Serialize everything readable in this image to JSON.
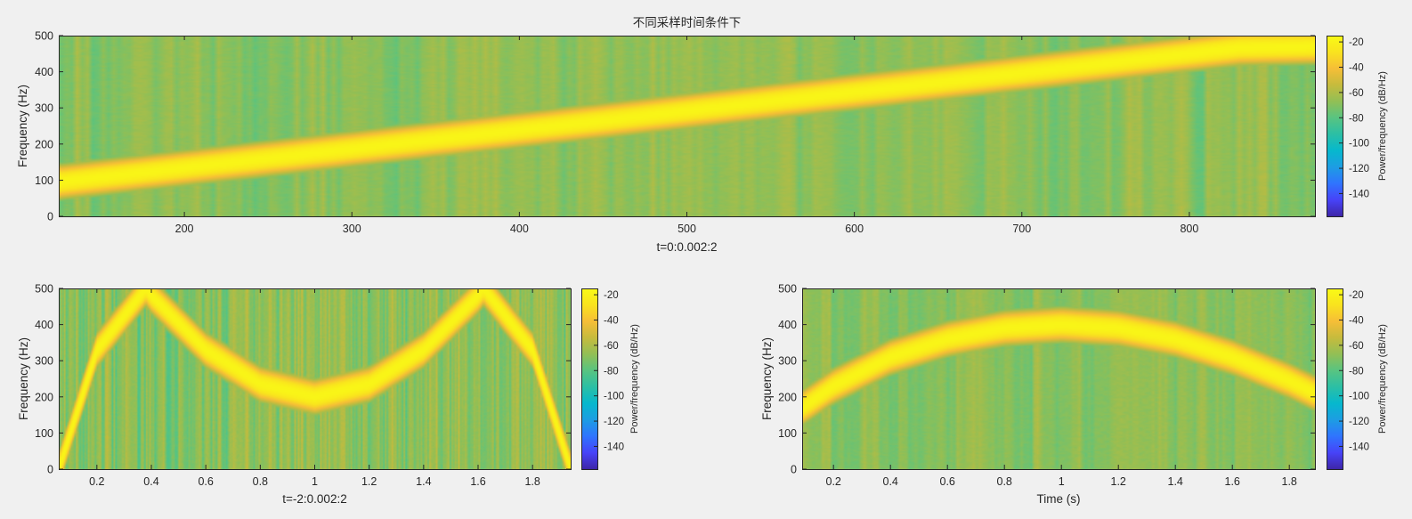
{
  "figure": {
    "background": "#f0f0f0",
    "colormap": "parula",
    "colormap_stops": [
      "#3e26a8",
      "#4743f8",
      "#2f74fe",
      "#1d9de3",
      "#06b8cd",
      "#2bbfa5",
      "#58c481",
      "#92bf55",
      "#c6bb3d",
      "#f6be37",
      "#f9e31e",
      "#f9fb15"
    ]
  },
  "chart_data": [
    {
      "type": "heatmap",
      "id": "top",
      "title": "不同采样时间条件下",
      "xlabel": "t=0:0.002:2",
      "ylabel": "Frequency (Hz)",
      "xlim": [
        125,
        875
      ],
      "ylim": [
        0,
        500
      ],
      "xticks": [
        200,
        300,
        400,
        500,
        600,
        700,
        800
      ],
      "xtick_labels": [
        "200",
        "300",
        "400",
        "500",
        "600",
        "700",
        "800"
      ],
      "yticks": [
        0,
        100,
        200,
        300,
        400,
        500
      ],
      "ytick_labels": [
        "0",
        "100",
        "200",
        "300",
        "400",
        "500"
      ],
      "ridge": {
        "shape": "linear-chirp",
        "points": [
          [
            125,
            95
          ],
          [
            175,
            121
          ],
          [
            250,
            160
          ],
          [
            350,
            213
          ],
          [
            450,
            265
          ],
          [
            550,
            318
          ],
          [
            650,
            370
          ],
          [
            750,
            423
          ],
          [
            830,
            466
          ],
          [
            875,
            470
          ]
        ],
        "peak_db": -20
      },
      "background_db": -70,
      "colorbar": {
        "label": "Power/frequency (dB/Hz)",
        "limits": [
          -158,
          -15
        ],
        "ticks": [
          -20,
          -40,
          -60,
          -80,
          -100,
          -120,
          -140
        ],
        "tick_labels": [
          "-20",
          "-40",
          "-60",
          "-80",
          "-100",
          "-120",
          "-140"
        ]
      }
    },
    {
      "type": "heatmap",
      "id": "bottom-left",
      "title": "",
      "xlabel": "t=-2:0.002:2",
      "ylabel": "Frequency (Hz)",
      "xlim": [
        0.06,
        1.94
      ],
      "ylim": [
        0,
        500
      ],
      "xticks": [
        0.2,
        0.4,
        0.6,
        0.8,
        1,
        1.2,
        1.4,
        1.6,
        1.8
      ],
      "xtick_labels": [
        "0.2",
        "0.4",
        "0.6",
        "0.8",
        "1",
        "1.2",
        "1.4",
        "1.6",
        "1.8"
      ],
      "yticks": [
        0,
        100,
        200,
        300,
        400,
        500
      ],
      "ytick_labels": [
        "0",
        "100",
        "200",
        "300",
        "400",
        "500"
      ],
      "ridge": {
        "shape": "folded-quadratic-chirp",
        "points": [
          [
            0.06,
            0
          ],
          [
            0.2,
            330
          ],
          [
            0.38,
            500
          ],
          [
            0.4,
            480
          ],
          [
            0.6,
            330
          ],
          [
            0.8,
            235
          ],
          [
            1.0,
            200
          ],
          [
            1.2,
            235
          ],
          [
            1.4,
            330
          ],
          [
            1.6,
            480
          ],
          [
            1.62,
            500
          ],
          [
            1.8,
            330
          ],
          [
            1.94,
            0
          ]
        ],
        "peak_db": -20
      },
      "background_db": -70,
      "colorbar": {
        "label": "Power/frequency (dB/Hz)",
        "limits": [
          -158,
          -15
        ],
        "ticks": [
          -20,
          -40,
          -60,
          -80,
          -100,
          -120,
          -140
        ],
        "tick_labels": [
          "-20",
          "-40",
          "-60",
          "-80",
          "-100",
          "-120",
          "-140"
        ]
      }
    },
    {
      "type": "heatmap",
      "id": "bottom-right",
      "title": "",
      "xlabel": "Time (s)",
      "ylabel": "Frequency (Hz)",
      "xlim": [
        0.09,
        1.89
      ],
      "ylim": [
        0,
        500
      ],
      "xticks": [
        0.2,
        0.4,
        0.6,
        0.8,
        1,
        1.2,
        1.4,
        1.6,
        1.8
      ],
      "xtick_labels": [
        "0.2",
        "0.4",
        "0.6",
        "0.8",
        "1",
        "1.2",
        "1.4",
        "1.6",
        "1.8"
      ],
      "yticks": [
        0,
        100,
        200,
        300,
        400,
        500
      ],
      "ytick_labels": [
        "0",
        "100",
        "200",
        "300",
        "400",
        "500"
      ],
      "ridge": {
        "shape": "concave-quadratic-chirp",
        "points": [
          [
            0.09,
            170
          ],
          [
            0.2,
            230
          ],
          [
            0.4,
            310
          ],
          [
            0.6,
            360
          ],
          [
            0.8,
            390
          ],
          [
            1.0,
            400
          ],
          [
            1.2,
            390
          ],
          [
            1.4,
            360
          ],
          [
            1.6,
            310
          ],
          [
            1.8,
            245
          ],
          [
            1.89,
            210
          ]
        ],
        "peak_db": -20
      },
      "background_db": -70,
      "colorbar": {
        "label": "Power/frequency (dB/Hz)",
        "limits": [
          -158,
          -15
        ],
        "ticks": [
          -20,
          -40,
          -60,
          -80,
          -100,
          -120,
          -140
        ],
        "tick_labels": [
          "-20",
          "-40",
          "-60",
          "-80",
          "-100",
          "-120",
          "-140"
        ]
      }
    }
  ]
}
